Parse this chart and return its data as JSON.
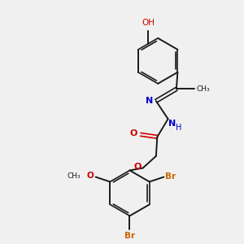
{
  "background_color": "#f0f0f0",
  "bond_color": "#1a1a1a",
  "oxygen_color": "#cc0000",
  "nitrogen_color": "#0000cc",
  "bromine_color": "#cc6600",
  "figsize": [
    3.0,
    3.0
  ],
  "dpi": 100,
  "xlim": [
    0,
    10
  ],
  "ylim": [
    0,
    10
  ]
}
